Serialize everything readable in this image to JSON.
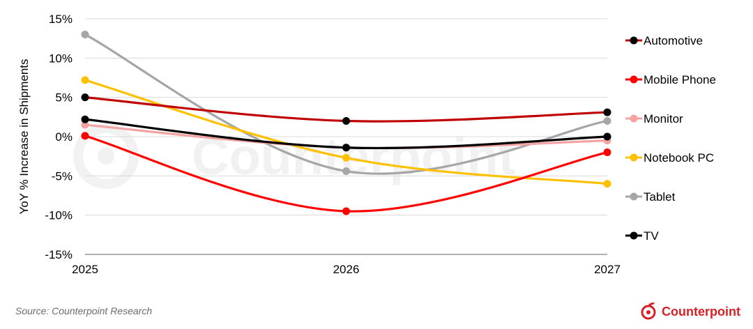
{
  "chart_data": {
    "type": "line",
    "title": "",
    "xlabel": "",
    "ylabel": "YoY % Increase in Shipments",
    "categories": [
      "2025",
      "2026",
      "2027"
    ],
    "ylim": [
      -15,
      15
    ],
    "yticks": [
      15,
      10,
      5,
      0,
      -5,
      -10,
      -15
    ],
    "ytick_labels": [
      "15%",
      "10%",
      "5%",
      "0%",
      "-5%",
      "-10%",
      "-15%"
    ],
    "grid": true,
    "legend_position": "right",
    "series": [
      {
        "name": "Automotive",
        "values": [
          5.0,
          2.0,
          3.1
        ],
        "color": "#c00000",
        "marker_color": "#000000"
      },
      {
        "name": "Mobile Phone",
        "values": [
          0.1,
          -9.5,
          -2.0
        ],
        "color": "#ff0000",
        "marker_color": "#ff0000"
      },
      {
        "name": "Monitor",
        "values": [
          1.5,
          -1.4,
          -0.5
        ],
        "color": "#f4a3a3",
        "marker_color": "#f4a3a3"
      },
      {
        "name": "Notebook PC",
        "values": [
          7.2,
          -2.7,
          -6.0
        ],
        "color": "#ffc000",
        "marker_color": "#ffc000"
      },
      {
        "name": "Tablet",
        "values": [
          13.0,
          -4.4,
          2.0
        ],
        "color": "#a6a6a6",
        "marker_color": "#a6a6a6"
      },
      {
        "name": "TV",
        "values": [
          2.2,
          -1.4,
          0.0
        ],
        "color": "#000000",
        "marker_color": "#000000"
      }
    ]
  },
  "source_text": "Source: Counterpoint Research",
  "brand": {
    "name": "Counterpoint",
    "color": "#d81f26"
  }
}
